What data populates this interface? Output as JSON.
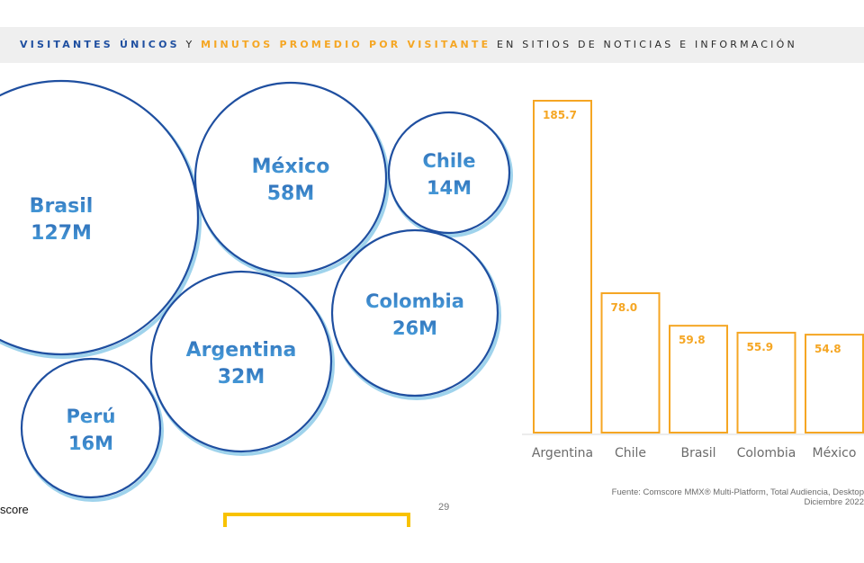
{
  "title": {
    "part1": "VISITANTES ÚNICOS",
    "part2": " Y ",
    "part3": "MINUTOS PROMEDIO POR VISITANTE",
    "part4": " EN SITIOS DE NOTICIAS E INFORMACIÓN"
  },
  "colors": {
    "blue_dark": "#1f4fa0",
    "blue_light": "#4aa3df",
    "gold": "#f5a623"
  },
  "chart_data": [
    {
      "type": "bubble",
      "series": [
        {
          "name": "Visitantes únicos",
          "points": [
            {
              "label": "Brasil",
              "value_text": "127M",
              "value": 127
            },
            {
              "label": "México",
              "value_text": "58M",
              "value": 58
            },
            {
              "label": "Chile",
              "value_text": "14M",
              "value": 14
            },
            {
              "label": "Colombia",
              "value_text": "26M",
              "value": 26
            },
            {
              "label": "Argentina",
              "value_text": "32M",
              "value": 32
            },
            {
              "label": "Perú",
              "value_text": "16M",
              "value": 16
            }
          ]
        }
      ]
    },
    {
      "type": "bar",
      "categories": [
        "Argentina",
        "Chile",
        "Brasil",
        "Colombia",
        "México"
      ],
      "series": [
        {
          "name": "Minutos promedio por visitante",
          "values": [
            185.7,
            78.0,
            59.8,
            55.9,
            54.8
          ],
          "labels": [
            "185.7",
            "78.0",
            "59.8",
            "55.9",
            "54.8"
          ]
        }
      ],
      "ylim": [
        0,
        185.7
      ],
      "grid": false
    }
  ],
  "footer": {
    "source_line1": "Fuente: Comscore MMX® Multi-Platform, Total Audiencia, Desktop",
    "source_line2": "Diciembre 2022",
    "brand": "score",
    "page": "29"
  }
}
